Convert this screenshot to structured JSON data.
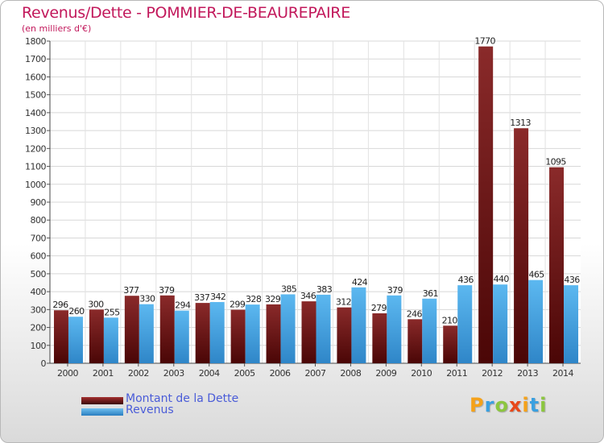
{
  "header": {
    "title": "Revenus/Dette - POMMIER-DE-BEAUREPAIRE",
    "subtitle": "(en milliers d'€)"
  },
  "legend": {
    "items": [
      {
        "label": "Montant de la Dette",
        "color": "#7a1a1a"
      },
      {
        "label": "Revenus",
        "color": "#3a9ad9"
      }
    ]
  },
  "logo": {
    "text": "Proxiti",
    "letters": [
      {
        "char": "P",
        "color": "#f5a21a"
      },
      {
        "char": "r",
        "color": "#3aa0e0"
      },
      {
        "char": "o",
        "color": "#8cc63f"
      },
      {
        "char": "x",
        "color": "#e8481a"
      },
      {
        "char": "i",
        "color": "#f5a21a"
      },
      {
        "char": "t",
        "color": "#3aa0e0"
      },
      {
        "char": "i",
        "color": "#8cc63f"
      }
    ]
  },
  "chart_data": {
    "type": "bar",
    "title": "Revenus/Dette - POMMIER-DE-BEAUREPAIRE",
    "subtitle": "(en milliers d'€)",
    "categories": [
      "2000",
      "2001",
      "2002",
      "2003",
      "2004",
      "2005",
      "2006",
      "2007",
      "2008",
      "2009",
      "2010",
      "2011",
      "2012",
      "2013",
      "2014"
    ],
    "series": [
      {
        "name": "Montant de la Dette",
        "color": "#7a1a1a",
        "values": [
          296,
          300,
          377,
          379,
          337,
          299,
          329,
          346,
          312,
          279,
          246,
          210,
          1770,
          1313,
          1095
        ]
      },
      {
        "name": "Revenus",
        "color": "#3a9ad9",
        "values": [
          260,
          255,
          330,
          294,
          342,
          328,
          385,
          383,
          424,
          379,
          361,
          436,
          440,
          465,
          436
        ]
      }
    ],
    "ylim": [
      0,
      1800
    ],
    "yticks": [
      0,
      100,
      200,
      300,
      400,
      500,
      600,
      700,
      800,
      900,
      1000,
      1100,
      1200,
      1300,
      1400,
      1500,
      1600,
      1700,
      1800
    ],
    "grid": true,
    "legend_position": "bottom-left"
  }
}
